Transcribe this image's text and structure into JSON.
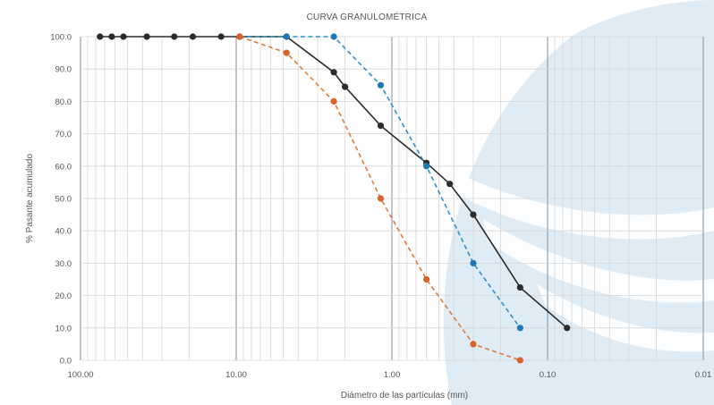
{
  "chart_data": {
    "type": "line",
    "title": "CURVA GRANULOMÉTRICA",
    "xlabel": "Diámetro de las partículas (mm)",
    "ylabel": "% Pasante acumulado",
    "x_scale": "log",
    "x_reversed": true,
    "xlim": [
      100,
      0.01
    ],
    "ylim": [
      0,
      100
    ],
    "x_ticks": [
      100,
      10,
      1,
      0.1,
      0.01
    ],
    "x_tick_labels": [
      "100.00",
      "10.00",
      "1.00",
      "0.10",
      "0.01"
    ],
    "y_ticks": [
      0,
      10,
      20,
      30,
      40,
      50,
      60,
      70,
      80,
      90,
      100
    ],
    "y_tick_labels": [
      "0.0",
      "10.0",
      "20.0",
      "30.0",
      "40.0",
      "50.0",
      "60.0",
      "70.0",
      "80.0",
      "90.0",
      "100.0"
    ],
    "grid": true,
    "series": [
      {
        "color": "#2b2b2b",
        "line_style": "solid",
        "marker_color": "#2b2b2b",
        "x": [
          75,
          63,
          53,
          37.5,
          25,
          19,
          12.5,
          9.5,
          4.75,
          2.36,
          2,
          1.18,
          0.6,
          0.425,
          0.3,
          0.15,
          0.075
        ],
        "y": [
          100,
          100,
          100,
          100,
          100,
          100,
          100,
          100,
          100,
          89,
          84.5,
          72.5,
          61,
          54.5,
          45,
          22.5,
          10
        ]
      },
      {
        "color": "#2c92c9",
        "line_style": "dashed",
        "marker_color": "#1f77b4",
        "x": [
          9.5,
          4.75,
          2.36,
          1.18,
          0.6,
          0.3,
          0.15
        ],
        "y": [
          100,
          100,
          100,
          85,
          60,
          30,
          10
        ]
      },
      {
        "color": "#e07b3c",
        "line_style": "dashed",
        "marker_color": "#d9622b",
        "x": [
          9.5,
          4.75,
          2.36,
          1.18,
          0.6,
          0.3,
          0.15
        ],
        "y": [
          100,
          95,
          80,
          50,
          25,
          5,
          0
        ]
      }
    ]
  }
}
